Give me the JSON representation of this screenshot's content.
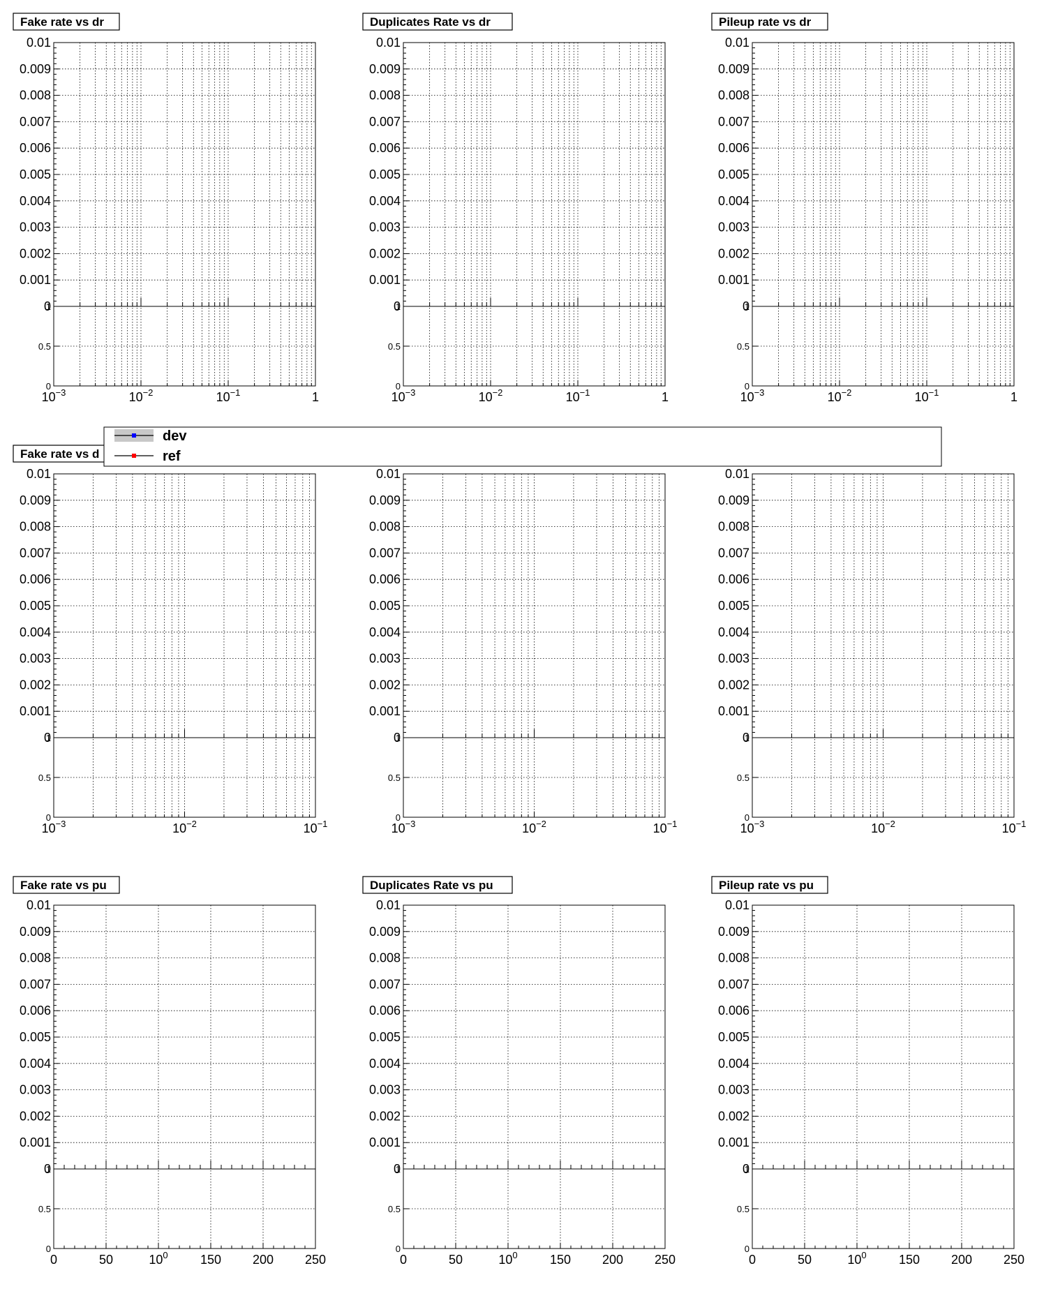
{
  "legend": {
    "entries": [
      {
        "label": "dev",
        "color": "#0000ff"
      },
      {
        "label": "ref",
        "color": "#ff0000"
      }
    ]
  },
  "chart_data": [
    {
      "type": "line",
      "title": "Fake rate vs dr",
      "xscale": "log",
      "xlim": [
        0.001,
        1
      ],
      "ylim": [
        0,
        0.01
      ],
      "ratio_ylim": [
        0,
        1
      ],
      "xtick_labels": [
        "10⁻³",
        "10⁻²",
        "10⁻¹",
        "1"
      ],
      "ytick_labels": [
        "0",
        "0.001",
        "0.002",
        "0.003",
        "0.004",
        "0.005",
        "0.006",
        "0.007",
        "0.008",
        "0.009",
        "0.01"
      ],
      "ratio_ytick_labels": [
        "0",
        "0.5",
        "1"
      ],
      "grid": true,
      "series": [
        {
          "name": "dev",
          "values": []
        },
        {
          "name": "ref",
          "values": []
        }
      ]
    },
    {
      "type": "line",
      "title": "Duplicates Rate vs dr",
      "xscale": "log",
      "xlim": [
        0.001,
        1
      ],
      "ylim": [
        0,
        0.01
      ],
      "ratio_ylim": [
        0,
        1
      ],
      "xtick_labels": [
        "10⁻³",
        "10⁻²",
        "10⁻¹",
        "1"
      ],
      "ytick_labels": [
        "0",
        "0.001",
        "0.002",
        "0.003",
        "0.004",
        "0.005",
        "0.006",
        "0.007",
        "0.008",
        "0.009",
        "0.01"
      ],
      "ratio_ytick_labels": [
        "0",
        "0.5",
        "1"
      ],
      "grid": true,
      "series": [
        {
          "name": "dev",
          "values": []
        },
        {
          "name": "ref",
          "values": []
        }
      ]
    },
    {
      "type": "line",
      "title": "Pileup rate vs dr",
      "xscale": "log",
      "xlim": [
        0.001,
        1
      ],
      "ylim": [
        0,
        0.01
      ],
      "ratio_ylim": [
        0,
        1
      ],
      "xtick_labels": [
        "10⁻³",
        "10⁻²",
        "10⁻¹",
        "1"
      ],
      "ytick_labels": [
        "0",
        "0.001",
        "0.002",
        "0.003",
        "0.004",
        "0.005",
        "0.006",
        "0.007",
        "0.008",
        "0.009",
        "0.01"
      ],
      "ratio_ytick_labels": [
        "0",
        "0.5",
        "1"
      ],
      "grid": true,
      "series": [
        {
          "name": "dev",
          "values": []
        },
        {
          "name": "ref",
          "values": []
        }
      ]
    },
    {
      "type": "line",
      "title": "Fake rate vs d",
      "xscale": "log",
      "xlim": [
        0.001,
        0.1
      ],
      "ylim": [
        0,
        0.01
      ],
      "ratio_ylim": [
        0,
        1
      ],
      "xtick_labels": [
        "10⁻³",
        "10⁻²",
        "10⁻¹"
      ],
      "ytick_labels": [
        "0",
        "0.001",
        "0.002",
        "0.003",
        "0.004",
        "0.005",
        "0.006",
        "0.007",
        "0.008",
        "0.009",
        "0.01"
      ],
      "ratio_ytick_labels": [
        "0",
        "0.5",
        "1"
      ],
      "grid": true,
      "series": [
        {
          "name": "dev",
          "values": []
        },
        {
          "name": "ref",
          "values": []
        }
      ]
    },
    {
      "type": "line",
      "title": "",
      "xscale": "log",
      "xlim": [
        0.001,
        0.1
      ],
      "ylim": [
        0,
        0.01
      ],
      "ratio_ylim": [
        0,
        1
      ],
      "xtick_labels": [
        "10⁻³",
        "10⁻²",
        "10⁻¹"
      ],
      "ytick_labels": [
        "0",
        "0.001",
        "0.002",
        "0.003",
        "0.004",
        "0.005",
        "0.006",
        "0.007",
        "0.008",
        "0.009",
        "0.01"
      ],
      "ratio_ytick_labels": [
        "0",
        "0.5",
        "1"
      ],
      "grid": true,
      "series": [
        {
          "name": "dev",
          "values": []
        },
        {
          "name": "ref",
          "values": []
        }
      ]
    },
    {
      "type": "line",
      "title": "",
      "xscale": "log",
      "xlim": [
        0.001,
        0.1
      ],
      "ylim": [
        0,
        0.01
      ],
      "ratio_ylim": [
        0,
        1
      ],
      "xtick_labels": [
        "10⁻³",
        "10⁻²",
        "10⁻¹"
      ],
      "ytick_labels": [
        "0",
        "0.001",
        "0.002",
        "0.003",
        "0.004",
        "0.005",
        "0.006",
        "0.007",
        "0.008",
        "0.009",
        "0.01"
      ],
      "ratio_ytick_labels": [
        "0",
        "0.5",
        "1"
      ],
      "grid": true,
      "series": [
        {
          "name": "dev",
          "values": []
        },
        {
          "name": "ref",
          "values": []
        }
      ]
    },
    {
      "type": "line",
      "title": "Fake rate vs pu",
      "xscale": "linear",
      "xlim": [
        0,
        250
      ],
      "ylim": [
        0,
        0.01
      ],
      "ratio_ylim": [
        0,
        1
      ],
      "xtick_labels": [
        "0",
        "50",
        "100",
        "150",
        "200",
        "250"
      ],
      "ytick_labels": [
        "0",
        "0.001",
        "0.002",
        "0.003",
        "0.004",
        "0.005",
        "0.006",
        "0.007",
        "0.008",
        "0.009",
        "0.01"
      ],
      "ratio_ytick_labels": [
        "0",
        "0.5",
        "1"
      ],
      "grid": true,
      "series": [
        {
          "name": "dev",
          "values": []
        },
        {
          "name": "ref",
          "values": []
        }
      ]
    },
    {
      "type": "line",
      "title": "Duplicates Rate vs pu",
      "xscale": "linear",
      "xlim": [
        0,
        250
      ],
      "ylim": [
        0,
        0.01
      ],
      "ratio_ylim": [
        0,
        1
      ],
      "xtick_labels": [
        "0",
        "50",
        "100",
        "150",
        "200",
        "250"
      ],
      "ytick_labels": [
        "0",
        "0.001",
        "0.002",
        "0.003",
        "0.004",
        "0.005",
        "0.006",
        "0.007",
        "0.008",
        "0.009",
        "0.01"
      ],
      "ratio_ytick_labels": [
        "0",
        "0.5",
        "1"
      ],
      "grid": true,
      "series": [
        {
          "name": "dev",
          "values": []
        },
        {
          "name": "ref",
          "values": []
        }
      ]
    },
    {
      "type": "line",
      "title": "Pileup rate vs pu",
      "xscale": "linear",
      "xlim": [
        0,
        250
      ],
      "ylim": [
        0,
        0.01
      ],
      "ratio_ylim": [
        0,
        1
      ],
      "xtick_labels": [
        "0",
        "50",
        "100",
        "150",
        "200",
        "250"
      ],
      "ytick_labels": [
        "0",
        "0.001",
        "0.002",
        "0.003",
        "0.004",
        "0.005",
        "0.006",
        "0.007",
        "0.008",
        "0.009",
        "0.01"
      ],
      "ratio_ytick_labels": [
        "0",
        "0.5",
        "1"
      ],
      "grid": true,
      "series": [
        {
          "name": "dev",
          "values": []
        },
        {
          "name": "ref",
          "values": []
        }
      ]
    }
  ]
}
